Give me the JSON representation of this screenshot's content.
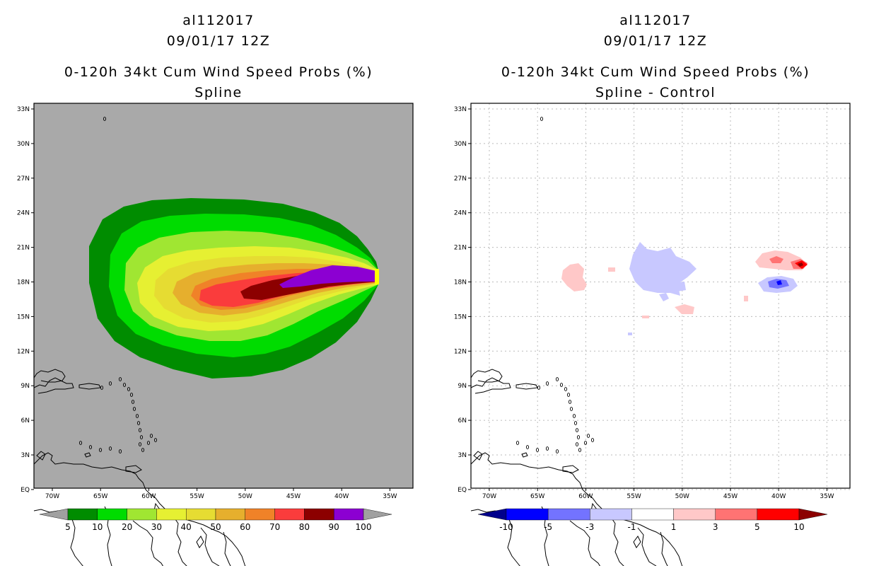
{
  "left_panel": {
    "storm_id": "al112017",
    "datetime": "09/01/17 12Z",
    "product": "0-120h 34kt Cum Wind Speed Probs (%)",
    "subtitle": "Spline",
    "colors": {
      "background": "#a9a9a9",
      "bins": [
        "#008c00",
        "#00dc00",
        "#a0e632",
        "#e6f032",
        "#e6dc32",
        "#e6af2d",
        "#f08228",
        "#fa3c3c",
        "#8c0000",
        "#8c00d2"
      ],
      "ends": [
        "#a0a0a0",
        "#a0a0a0"
      ]
    },
    "legend_labels": [
      "5",
      "10",
      "20",
      "30",
      "40",
      "50",
      "60",
      "70",
      "80",
      "90",
      "100"
    ]
  },
  "right_panel": {
    "storm_id": "al112017",
    "datetime": "09/01/17 12Z",
    "product": "0-120h 34kt Cum Wind Speed Probs (%)",
    "subtitle": "Spline - Control",
    "colors": {
      "background": "#ffffff",
      "bins": [
        "#0000ff",
        "#7373ff",
        "#c8c8ff",
        "#ffffff",
        "#ffc8c8",
        "#ff7373",
        "#ff0000"
      ],
      "ends": [
        "#00008c",
        "#8c0000"
      ]
    },
    "legend_labels": [
      "-10",
      "-5",
      "-3",
      "-1",
      "1",
      "3",
      "5",
      "10"
    ]
  },
  "axes": {
    "lat_ticks": [
      "33N",
      "30N",
      "27N",
      "24N",
      "21N",
      "18N",
      "15N",
      "12N",
      "9N",
      "6N",
      "3N",
      "EQ"
    ],
    "lon_ticks": [
      "70W",
      "65W",
      "60W",
      "55W",
      "50W",
      "45W",
      "40W",
      "35W"
    ]
  }
}
